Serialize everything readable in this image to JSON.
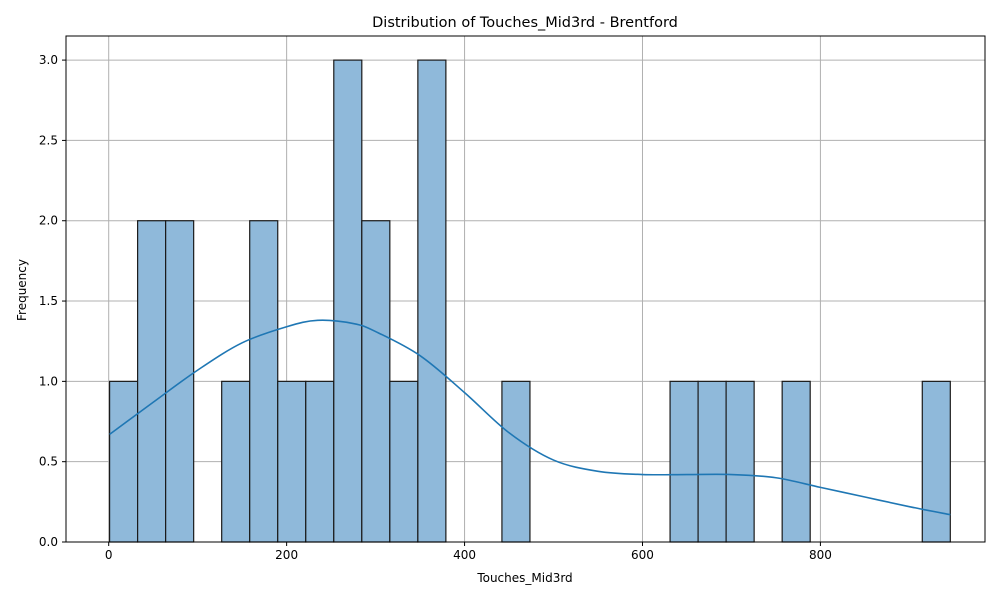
{
  "chart_data": {
    "type": "bar",
    "title": "Distribution of Touches_Mid3rd - Brentford",
    "xlabel": "Touches_Mid3rd",
    "ylabel": "Frequency",
    "xlim": [
      -48,
      985
    ],
    "ylim": [
      0,
      3.15
    ],
    "x_ticks": [
      0,
      200,
      400,
      600,
      800
    ],
    "y_ticks": [
      0.0,
      0.5,
      1.0,
      1.5,
      2.0,
      2.5,
      3.0
    ],
    "x_tick_labels": [
      "0",
      "200",
      "400",
      "600",
      "800"
    ],
    "y_tick_labels": [
      "0.0",
      "0.5",
      "1.0",
      "1.5",
      "2.0",
      "2.5",
      "3.0"
    ],
    "grid": true,
    "bin_edges": [
      1,
      32.5,
      64,
      95.5,
      127,
      158.5,
      190,
      221.5,
      253,
      284.5,
      316,
      347.5,
      379,
      410.5,
      442,
      473.5,
      505,
      536.5,
      568,
      599.5,
      631,
      662.5,
      694,
      725.5,
      757,
      788.5,
      820,
      851.5,
      883,
      914.5,
      946
    ],
    "counts": [
      1,
      2,
      2,
      0,
      1,
      2,
      1,
      1,
      3,
      2,
      1,
      3,
      0,
      0,
      1,
      0,
      0,
      0,
      0,
      0,
      1,
      1,
      1,
      0,
      1,
      0,
      0,
      0,
      0,
      1
    ],
    "kde": {
      "x": [
        1,
        50,
        100,
        150,
        200,
        235,
        275,
        300,
        350,
        400,
        450,
        500,
        550,
        600,
        650,
        700,
        750,
        800,
        850,
        900,
        946
      ],
      "y": [
        0.67,
        0.87,
        1.07,
        1.24,
        1.34,
        1.38,
        1.36,
        1.31,
        1.16,
        0.93,
        0.68,
        0.51,
        0.44,
        0.42,
        0.42,
        0.42,
        0.4,
        0.34,
        0.28,
        0.22,
        0.17
      ]
    },
    "colors": {
      "bar_fill": "#8fb9da",
      "bar_edge": "#1a1a1a",
      "kde_line": "#1f77b4",
      "grid": "#b0b0b0"
    }
  }
}
